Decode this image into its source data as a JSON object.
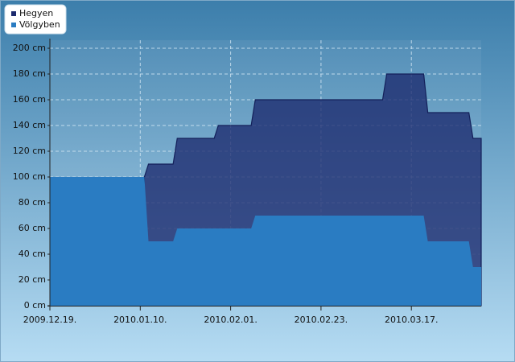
{
  "chart_data": {
    "type": "area",
    "x": [
      "2009.12.19.",
      "2010.01.11.",
      "2010.01.12.",
      "2010.01.18.",
      "2010.01.19.",
      "2010.01.28.",
      "2010.01.29.",
      "2010.02.06.",
      "2010.02.07.",
      "2010.03.10.",
      "2010.03.11.",
      "2010.03.20.",
      "2010.03.21.",
      "2010.03.31.",
      "2010.04.01.",
      "2010.04.03."
    ],
    "series": [
      {
        "name": "Hegyen",
        "color": "#1c2a6e",
        "values": [
          null,
          100,
          110,
          110,
          130,
          130,
          140,
          140,
          160,
          160,
          180,
          180,
          150,
          150,
          130,
          130
        ]
      },
      {
        "name": "Völgyben",
        "color": "#2a7cc2",
        "values": [
          100,
          100,
          50,
          50,
          60,
          60,
          60,
          60,
          70,
          70,
          70,
          70,
          50,
          50,
          30,
          30
        ]
      }
    ],
    "xlim": [
      "2009.12.19.",
      "2010.04.03."
    ],
    "xticks": [
      "2009.12.19.",
      "2010.01.10.",
      "2010.02.01.",
      "2010.02.23.",
      "2010.03.17."
    ],
    "ylim": [
      0,
      200
    ],
    "yticks": [
      {
        "value": 0,
        "label": "0 cm"
      },
      {
        "value": 20,
        "label": "20 cm"
      },
      {
        "value": 40,
        "label": "40 cm"
      },
      {
        "value": 60,
        "label": "60 cm"
      },
      {
        "value": 80,
        "label": "80 cm"
      },
      {
        "value": 100,
        "label": "100 cm"
      },
      {
        "value": 120,
        "label": "120 cm"
      },
      {
        "value": 140,
        "label": "140 cm"
      },
      {
        "value": 160,
        "label": "160 cm"
      },
      {
        "value": 180,
        "label": "180 cm"
      },
      {
        "value": 200,
        "label": "200 cm"
      }
    ],
    "grid": true,
    "legend": "top-left"
  }
}
